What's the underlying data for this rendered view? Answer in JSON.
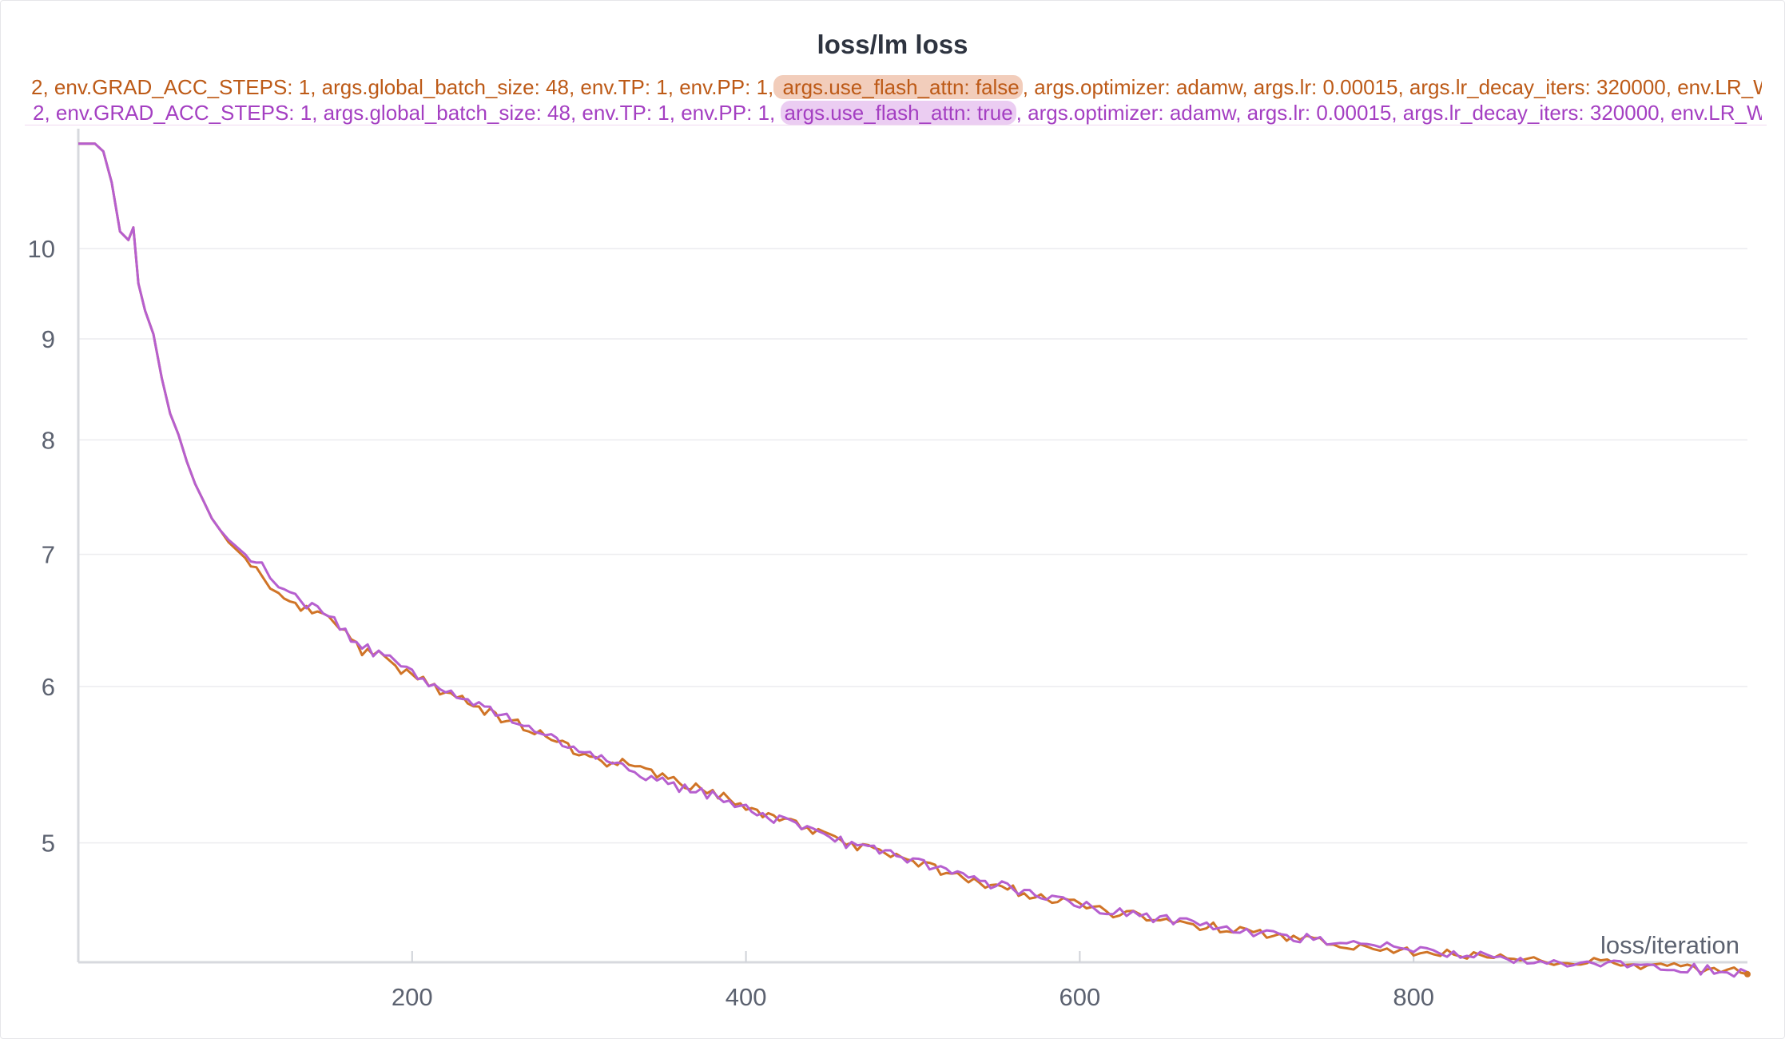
{
  "panel": {
    "title": "loss/lm loss",
    "legend": [
      {
        "prefix": "2, env.GRAD_ACC_STEPS: 1, args.global_batch_size: 48, env.TP: 1, env.PP: 1,",
        "highlight": " args.use_flash_attn: false",
        "suffix": ", args.optimizer: adamw, args.lr: 0.00015, args.lr_decay_iters: 320000, env.LR_WAR",
        "color": "#bd5a17"
      },
      {
        "prefix": "2, env.GRAD_ACC_STEPS: 1, args.global_batch_size: 48, env.TP: 1, env.PP: 1, ",
        "highlight": "args.use_flash_attn: true",
        "suffix": ", args.optimizer: adamw, args.lr: 0.00015, args.lr_decay_iters: 320000, env.LR_WAR",
        "color": "#a43fc2"
      }
    ]
  },
  "chart_data": {
    "type": "line",
    "title": "loss/lm loss",
    "xlabel": "loss/iteration",
    "ylabel": "",
    "y_scale": "log",
    "xlim": [
      0,
      1000
    ],
    "ylim": [
      4.35,
      11.5
    ],
    "x_ticks": [
      200,
      400,
      600,
      800
    ],
    "y_ticks": [
      5,
      6,
      7,
      8,
      9,
      10
    ],
    "grid": true,
    "series": [
      {
        "name": "args.use_flash_attn: false",
        "color": "#d07427",
        "points": [
          [
            0,
            11.3
          ],
          [
            10,
            11.3
          ],
          [
            15,
            11.2
          ],
          [
            20,
            10.8
          ],
          [
            25,
            10.2
          ],
          [
            30,
            10.1
          ],
          [
            33,
            10.25
          ],
          [
            36,
            9.6
          ],
          [
            40,
            9.3
          ],
          [
            45,
            9.05
          ],
          [
            50,
            8.6
          ],
          [
            55,
            8.25
          ],
          [
            60,
            8.05
          ],
          [
            65,
            7.8
          ],
          [
            70,
            7.6
          ],
          [
            75,
            7.45
          ],
          [
            80,
            7.3
          ],
          [
            85,
            7.2
          ],
          [
            90,
            7.1
          ],
          [
            100,
            6.97
          ],
          [
            110,
            6.85
          ],
          [
            115,
            6.73
          ],
          [
            120,
            6.71
          ],
          [
            130,
            6.62
          ],
          [
            140,
            6.54
          ],
          [
            150,
            6.48
          ],
          [
            160,
            6.38
          ],
          [
            170,
            6.26
          ],
          [
            180,
            6.22
          ],
          [
            190,
            6.14
          ],
          [
            200,
            6.08
          ],
          [
            210,
            6.02
          ],
          [
            220,
            5.95
          ],
          [
            230,
            5.91
          ],
          [
            240,
            5.85
          ],
          [
            250,
            5.8
          ],
          [
            260,
            5.76
          ],
          [
            270,
            5.7
          ],
          [
            280,
            5.67
          ],
          [
            290,
            5.62
          ],
          [
            300,
            5.56
          ],
          [
            310,
            5.53
          ],
          [
            320,
            5.47
          ],
          [
            326,
            5.5
          ],
          [
            330,
            5.45
          ],
          [
            340,
            5.43
          ],
          [
            350,
            5.41
          ],
          [
            360,
            5.37
          ],
          [
            370,
            5.33
          ],
          [
            380,
            5.29
          ],
          [
            390,
            5.26
          ],
          [
            400,
            5.22
          ],
          [
            410,
            5.16
          ],
          [
            420,
            5.14
          ],
          [
            430,
            5.11
          ],
          [
            440,
            5.07
          ],
          [
            450,
            5.04
          ],
          [
            460,
            5.0
          ],
          [
            470,
            4.98
          ],
          [
            480,
            4.95
          ],
          [
            490,
            4.92
          ],
          [
            500,
            4.89
          ],
          [
            510,
            4.86
          ],
          [
            520,
            4.83
          ],
          [
            530,
            4.81
          ],
          [
            540,
            4.78
          ],
          [
            550,
            4.76
          ],
          [
            560,
            4.73
          ],
          [
            570,
            4.71
          ],
          [
            580,
            4.69
          ],
          [
            590,
            4.67
          ],
          [
            600,
            4.65
          ],
          [
            620,
            4.61
          ],
          [
            640,
            4.58
          ],
          [
            660,
            4.55
          ],
          [
            680,
            4.53
          ],
          [
            700,
            4.5
          ],
          [
            720,
            4.48
          ],
          [
            740,
            4.46
          ],
          [
            760,
            4.44
          ],
          [
            780,
            4.43
          ],
          [
            800,
            4.41
          ],
          [
            820,
            4.39
          ],
          [
            840,
            4.38
          ],
          [
            860,
            4.37
          ],
          [
            880,
            4.36
          ],
          [
            900,
            4.35
          ],
          [
            920,
            4.34
          ],
          [
            940,
            4.33
          ],
          [
            960,
            4.32
          ],
          [
            980,
            4.31
          ],
          [
            1000,
            4.29
          ]
        ]
      },
      {
        "name": "args.use_flash_attn: true",
        "color": "#b65fcf",
        "points": [
          [
            0,
            11.3
          ],
          [
            10,
            11.3
          ],
          [
            15,
            11.2
          ],
          [
            20,
            10.8
          ],
          [
            25,
            10.2
          ],
          [
            30,
            10.1
          ],
          [
            33,
            10.25
          ],
          [
            36,
            9.6
          ],
          [
            40,
            9.3
          ],
          [
            45,
            9.05
          ],
          [
            50,
            8.6
          ],
          [
            55,
            8.25
          ],
          [
            60,
            8.05
          ],
          [
            65,
            7.8
          ],
          [
            70,
            7.6
          ],
          [
            75,
            7.45
          ],
          [
            80,
            7.3
          ],
          [
            85,
            7.2
          ],
          [
            90,
            7.12
          ],
          [
            100,
            7.0
          ],
          [
            110,
            6.9
          ],
          [
            115,
            6.77
          ],
          [
            120,
            6.76
          ],
          [
            130,
            6.66
          ],
          [
            140,
            6.58
          ],
          [
            150,
            6.51
          ],
          [
            160,
            6.4
          ],
          [
            170,
            6.28
          ],
          [
            180,
            6.24
          ],
          [
            190,
            6.16
          ],
          [
            200,
            6.09
          ],
          [
            210,
            6.03
          ],
          [
            220,
            5.96
          ],
          [
            230,
            5.92
          ],
          [
            240,
            5.86
          ],
          [
            250,
            5.81
          ],
          [
            260,
            5.77
          ],
          [
            270,
            5.71
          ],
          [
            280,
            5.68
          ],
          [
            290,
            5.63
          ],
          [
            300,
            5.57
          ],
          [
            310,
            5.54
          ],
          [
            320,
            5.47
          ],
          [
            326,
            5.46
          ],
          [
            330,
            5.41
          ],
          [
            340,
            5.4
          ],
          [
            350,
            5.38
          ],
          [
            360,
            5.33
          ],
          [
            370,
            5.31
          ],
          [
            380,
            5.28
          ],
          [
            390,
            5.25
          ],
          [
            400,
            5.21
          ],
          [
            410,
            5.16
          ],
          [
            420,
            5.14
          ],
          [
            430,
            5.11
          ],
          [
            440,
            5.07
          ],
          [
            450,
            5.03
          ],
          [
            460,
            5.0
          ],
          [
            470,
            4.98
          ],
          [
            480,
            4.95
          ],
          [
            490,
            4.92
          ],
          [
            500,
            4.89
          ],
          [
            510,
            4.87
          ],
          [
            520,
            4.84
          ],
          [
            530,
            4.82
          ],
          [
            540,
            4.79
          ],
          [
            550,
            4.76
          ],
          [
            560,
            4.74
          ],
          [
            570,
            4.72
          ],
          [
            580,
            4.69
          ],
          [
            590,
            4.67
          ],
          [
            600,
            4.65
          ],
          [
            620,
            4.62
          ],
          [
            640,
            4.59
          ],
          [
            660,
            4.56
          ],
          [
            680,
            4.53
          ],
          [
            700,
            4.51
          ],
          [
            720,
            4.49
          ],
          [
            740,
            4.47
          ],
          [
            760,
            4.45
          ],
          [
            780,
            4.43
          ],
          [
            800,
            4.41
          ],
          [
            820,
            4.4
          ],
          [
            840,
            4.38
          ],
          [
            860,
            4.37
          ],
          [
            880,
            4.36
          ],
          [
            900,
            4.35
          ],
          [
            920,
            4.34
          ],
          [
            940,
            4.33
          ],
          [
            960,
            4.32
          ],
          [
            980,
            4.31
          ],
          [
            1000,
            4.3
          ]
        ]
      }
    ]
  }
}
